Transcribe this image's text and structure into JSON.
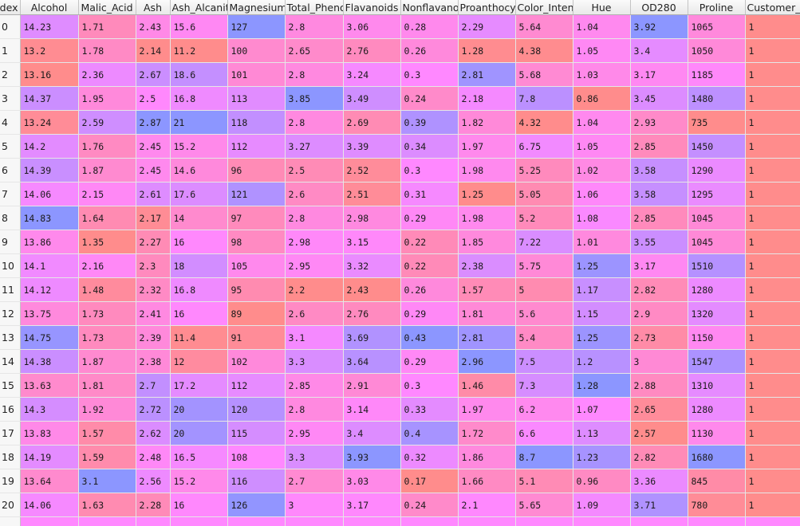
{
  "columns": [
    "Index",
    "Alcohol",
    "Malic_Acid",
    "Ash",
    "Ash_Alcanity",
    "Magnesium",
    "Total_Phenols",
    "Flavanoids",
    "Nonflavanoid_Phenols",
    "Proanthocyanins",
    "Color_Intensity",
    "Hue",
    "OD280",
    "Proline",
    "Customer_Segment"
  ],
  "rows": [
    [
      "0",
      "14.23",
      "1.71",
      "2.43",
      "15.6",
      "127",
      "2.8",
      "3.06",
      "0.28",
      "2.29",
      "5.64",
      "1.04",
      "3.92",
      "1065",
      "1"
    ],
    [
      "1",
      "13.2",
      "1.78",
      "2.14",
      "11.2",
      "100",
      "2.65",
      "2.76",
      "0.26",
      "1.28",
      "4.38",
      "1.05",
      "3.4",
      "1050",
      "1"
    ],
    [
      "2",
      "13.16",
      "2.36",
      "2.67",
      "18.6",
      "101",
      "2.8",
      "3.24",
      "0.3",
      "2.81",
      "5.68",
      "1.03",
      "3.17",
      "1185",
      "1"
    ],
    [
      "3",
      "14.37",
      "1.95",
      "2.5",
      "16.8",
      "113",
      "3.85",
      "3.49",
      "0.24",
      "2.18",
      "7.8",
      "0.86",
      "3.45",
      "1480",
      "1"
    ],
    [
      "4",
      "13.24",
      "2.59",
      "2.87",
      "21",
      "118",
      "2.8",
      "2.69",
      "0.39",
      "1.82",
      "4.32",
      "1.04",
      "2.93",
      "735",
      "1"
    ],
    [
      "5",
      "14.2",
      "1.76",
      "2.45",
      "15.2",
      "112",
      "3.27",
      "3.39",
      "0.34",
      "1.97",
      "6.75",
      "1.05",
      "2.85",
      "1450",
      "1"
    ],
    [
      "6",
      "14.39",
      "1.87",
      "2.45",
      "14.6",
      "96",
      "2.5",
      "2.52",
      "0.3",
      "1.98",
      "5.25",
      "1.02",
      "3.58",
      "1290",
      "1"
    ],
    [
      "7",
      "14.06",
      "2.15",
      "2.61",
      "17.6",
      "121",
      "2.6",
      "2.51",
      "0.31",
      "1.25",
      "5.05",
      "1.06",
      "3.58",
      "1295",
      "1"
    ],
    [
      "8",
      "14.83",
      "1.64",
      "2.17",
      "14",
      "97",
      "2.8",
      "2.98",
      "0.29",
      "1.98",
      "5.2",
      "1.08",
      "2.85",
      "1045",
      "1"
    ],
    [
      "9",
      "13.86",
      "1.35",
      "2.27",
      "16",
      "98",
      "2.98",
      "3.15",
      "0.22",
      "1.85",
      "7.22",
      "1.01",
      "3.55",
      "1045",
      "1"
    ],
    [
      "10",
      "14.1",
      "2.16",
      "2.3",
      "18",
      "105",
      "2.95",
      "3.32",
      "0.22",
      "2.38",
      "5.75",
      "1.25",
      "3.17",
      "1510",
      "1"
    ],
    [
      "11",
      "14.12",
      "1.48",
      "2.32",
      "16.8",
      "95",
      "2.2",
      "2.43",
      "0.26",
      "1.57",
      "5",
      "1.17",
      "2.82",
      "1280",
      "1"
    ],
    [
      "12",
      "13.75",
      "1.73",
      "2.41",
      "16",
      "89",
      "2.6",
      "2.76",
      "0.29",
      "1.81",
      "5.6",
      "1.15",
      "2.9",
      "1320",
      "1"
    ],
    [
      "13",
      "14.75",
      "1.73",
      "2.39",
      "11.4",
      "91",
      "3.1",
      "3.69",
      "0.43",
      "2.81",
      "5.4",
      "1.25",
      "2.73",
      "1150",
      "1"
    ],
    [
      "14",
      "14.38",
      "1.87",
      "2.38",
      "12",
      "102",
      "3.3",
      "3.64",
      "0.29",
      "2.96",
      "7.5",
      "1.2",
      "3",
      "1547",
      "1"
    ],
    [
      "15",
      "13.63",
      "1.81",
      "2.7",
      "17.2",
      "112",
      "2.85",
      "2.91",
      "0.3",
      "1.46",
      "7.3",
      "1.28",
      "2.88",
      "1310",
      "1"
    ],
    [
      "16",
      "14.3",
      "1.92",
      "2.72",
      "20",
      "120",
      "2.8",
      "3.14",
      "0.33",
      "1.97",
      "6.2",
      "1.07",
      "2.65",
      "1280",
      "1"
    ],
    [
      "17",
      "13.83",
      "1.57",
      "2.62",
      "20",
      "115",
      "2.95",
      "3.4",
      "0.4",
      "1.72",
      "6.6",
      "1.13",
      "2.57",
      "1130",
      "1"
    ],
    [
      "18",
      "14.19",
      "1.59",
      "2.48",
      "16.5",
      "108",
      "3.3",
      "3.93",
      "0.32",
      "1.86",
      "8.7",
      "1.23",
      "2.82",
      "1680",
      "1"
    ],
    [
      "19",
      "13.64",
      "3.1",
      "2.56",
      "15.2",
      "116",
      "2.7",
      "3.03",
      "0.17",
      "1.66",
      "5.1",
      "0.96",
      "3.36",
      "845",
      "1"
    ],
    [
      "20",
      "14.06",
      "1.63",
      "2.28",
      "16",
      "126",
      "3",
      "3.17",
      "0.24",
      "2.1",
      "5.65",
      "1.09",
      "3.71",
      "780",
      "1"
    ]
  ],
  "colors": {
    "low": "#ff8c8c",
    "mid": "#ff88ff",
    "high": "#8c96ff"
  }
}
